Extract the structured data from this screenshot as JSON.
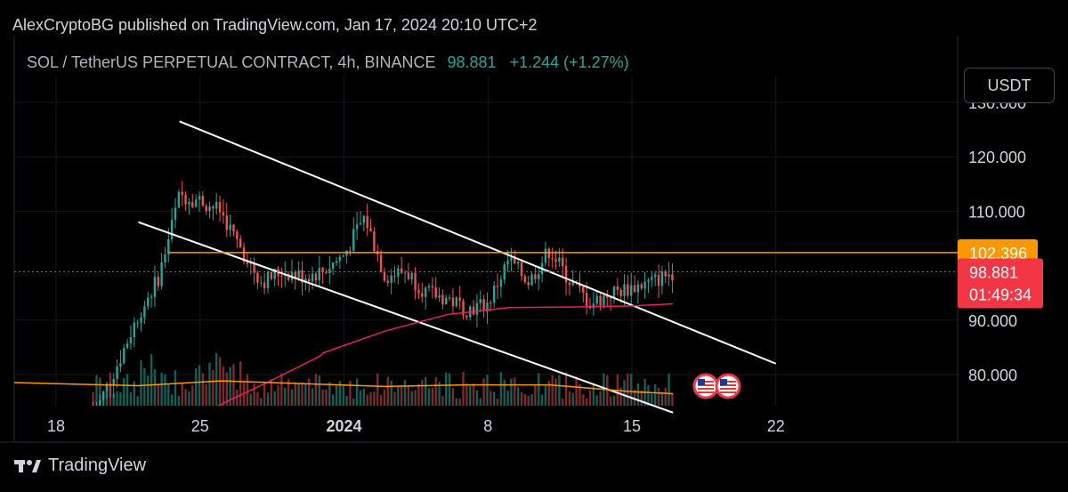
{
  "header": {
    "published": "AlexCryptoBG published on TradingView.com, Jan 17, 2024 20:10 UTC+2",
    "symbol": "SOL / TetherUS PERPETUAL CONTRACT, 4h, BINANCE",
    "last": "98.881",
    "change": "+1.244 (+1.27%)"
  },
  "currency_button": "USDT",
  "footer": {
    "brand": "TradingView"
  },
  "colors": {
    "up": "#26a69a",
    "down": "#ef5350",
    "ma_volume": "#ff9800",
    "ma_price": "#e91e63",
    "horizontal": "#ff9800",
    "price_label": "#f23645",
    "level_label": "#ff9800"
  },
  "chart_data": {
    "type": "line",
    "ylim": [
      74,
      137
    ],
    "y_ticks": [
      "130.000",
      "120.000",
      "110.000",
      "90.000",
      "80.000"
    ],
    "y_tick_values": [
      130,
      120,
      110,
      90,
      80
    ],
    "x_tick_labels": [
      "18",
      "25",
      "2024",
      "8",
      "15",
      "22"
    ],
    "x_tick_dates": [
      "2023-12-18",
      "2023-12-25",
      "2024-01-01",
      "2024-01-08",
      "2024-01-15",
      "2024-01-22"
    ],
    "price_series": {
      "name": "SOL / TetherUS",
      "x": [
        "2023-12-18",
        "2023-12-19",
        "2023-12-20",
        "2023-12-21",
        "2023-12-22",
        "2023-12-23",
        "2023-12-24",
        "2023-12-25",
        "2023-12-26",
        "2023-12-27",
        "2023-12-28",
        "2023-12-29",
        "2023-12-30",
        "2023-12-31",
        "2024-01-01",
        "2024-01-02",
        "2024-01-03",
        "2024-01-04",
        "2024-01-05",
        "2024-01-06",
        "2024-01-07",
        "2024-01-08",
        "2024-01-09",
        "2024-01-10",
        "2024-01-11",
        "2024-01-12",
        "2024-01-13",
        "2024-01-14",
        "2024-01-15",
        "2024-01-16",
        "2024-01-17"
      ],
      "close": [
        73,
        72,
        74,
        82,
        91,
        98,
        113,
        112,
        110,
        103,
        97,
        99,
        98,
        99,
        102,
        109,
        98,
        99,
        95,
        94,
        92,
        93,
        101,
        97,
        103,
        97,
        93,
        95,
        96,
        97,
        98.881
      ]
    },
    "volume_ma_series": {
      "x": [
        "2023-12-18",
        "2023-12-22",
        "2023-12-26",
        "2023-12-30",
        "2024-01-03",
        "2024-01-07",
        "2024-01-11",
        "2024-01-15",
        "2024-01-17"
      ],
      "values": [
        0.55,
        0.5,
        0.62,
        0.55,
        0.48,
        0.52,
        0.52,
        0.35,
        0.3
      ]
    },
    "price_ma_series": {
      "x": [
        "2023-12-31",
        "2024-01-03",
        "2024-01-06",
        "2024-01-09",
        "2024-01-12",
        "2024-01-15",
        "2024-01-17"
      ],
      "values": [
        84,
        88,
        91,
        92.3,
        92.4,
        92.6,
        93
      ]
    },
    "upper_trendline": {
      "x": [
        "2023-12-24",
        "2024-01-22"
      ],
      "y": [
        126.5,
        82
      ]
    },
    "lower_trendline": {
      "x": [
        "2023-12-22",
        "2024-01-17"
      ],
      "y": [
        108,
        73
      ]
    },
    "horizontal_line": {
      "y": 102.396,
      "label": "102.396"
    },
    "current_price": {
      "y": 98.881,
      "label": "98.881",
      "countdown": "01:49:34"
    },
    "grid": true
  }
}
